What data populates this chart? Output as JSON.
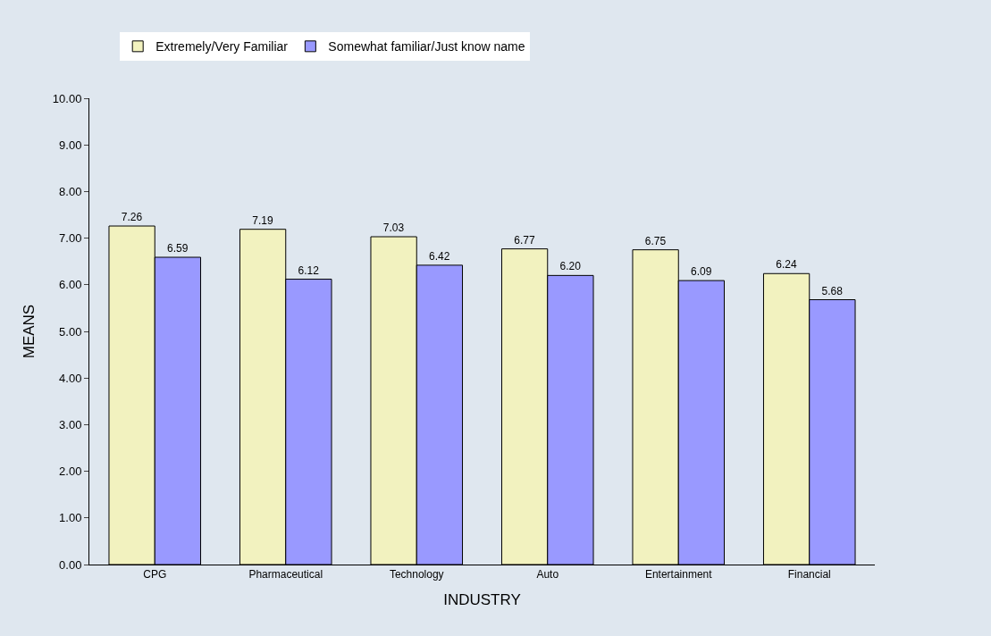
{
  "chart_data": {
    "type": "bar",
    "xlabel": "INDUSTRY",
    "ylabel": "MEANS",
    "categories": [
      "CPG",
      "Pharmaceutical",
      "Technology",
      "Auto",
      "Entertainment",
      "Financial"
    ],
    "series": [
      {
        "name": "Extremely/Very Familiar",
        "color": "#f2f2bf",
        "values": [
          7.26,
          7.19,
          7.03,
          6.77,
          6.75,
          6.24
        ],
        "value_labels": [
          "7.26",
          "7.19",
          "7.03",
          "6.77",
          "6.75",
          "6.24"
        ]
      },
      {
        "name": "Somewhat familiar/Just know name",
        "color": "#9999ff",
        "values": [
          6.59,
          6.12,
          6.42,
          6.2,
          6.09,
          5.68
        ],
        "value_labels": [
          "6.59",
          "6.12",
          "6.42",
          "6.20",
          "6.09",
          "5.68"
        ]
      }
    ],
    "ylim": [
      0,
      10
    ],
    "yticks": [
      {
        "value": 0,
        "label": "0.00"
      },
      {
        "value": 1,
        "label": "1.00"
      },
      {
        "value": 2,
        "label": "2.00"
      },
      {
        "value": 3,
        "label": "3.00"
      },
      {
        "value": 4,
        "label": "4.00"
      },
      {
        "value": 5,
        "label": "5.00"
      },
      {
        "value": 6,
        "label": "6.00"
      },
      {
        "value": 7,
        "label": "7.00"
      },
      {
        "value": 8,
        "label": "8.00"
      },
      {
        "value": 9,
        "label": "9.00"
      },
      {
        "value": 10,
        "label": "10.00"
      }
    ],
    "legend": "top",
    "grid": false
  }
}
